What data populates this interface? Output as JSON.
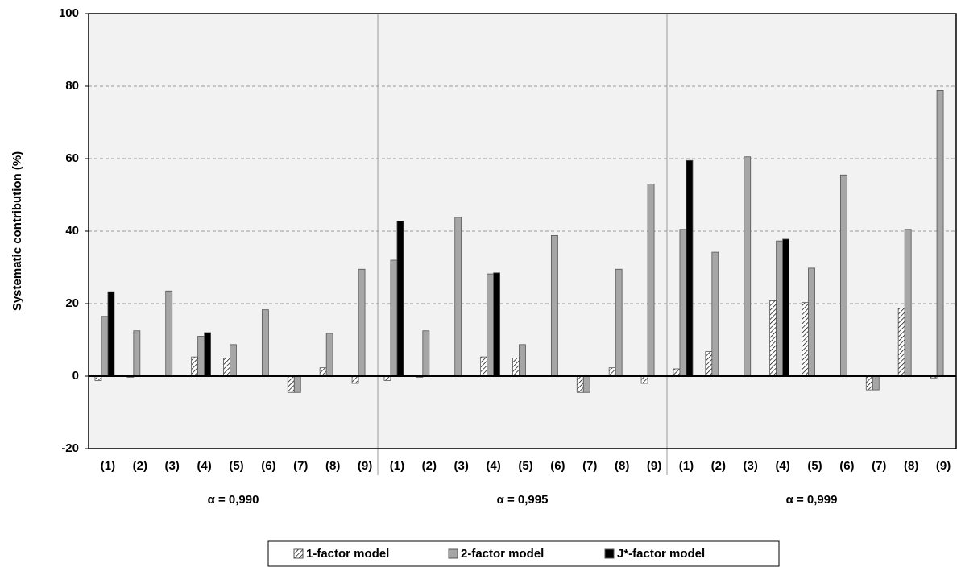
{
  "chart_data": {
    "type": "bar",
    "y_label": "Systematic contribution (%)",
    "categories": [
      "(1)",
      "(2)",
      "(3)",
      "(4)",
      "(5)",
      "(6)",
      "(7)",
      "(8)",
      "(9)",
      "(1)",
      "(2)",
      "(3)",
      "(4)",
      "(5)",
      "(6)",
      "(7)",
      "(8)",
      "(9)",
      "(1)",
      "(2)",
      "(3)",
      "(4)",
      "(5)",
      "(6)",
      "(7)",
      "(8)",
      "(9)"
    ],
    "groups": [
      "α = 0,990",
      "α = 0,995",
      "α = 0,999"
    ],
    "series": [
      {
        "name": "1-factor model",
        "color": "#ffffff",
        "pattern": "hatch",
        "values": [
          -1.2,
          -0.3,
          null,
          5.3,
          5,
          null,
          -4.5,
          2.3,
          -2,
          -1.2,
          -0.3,
          null,
          5.3,
          5,
          null,
          -4.5,
          2.3,
          -2,
          2,
          6.8,
          null,
          20.8,
          20.3,
          null,
          -3.8,
          18.8,
          -0.5
        ]
      },
      {
        "name": "2-factor model",
        "color": "#a6a6a6",
        "values": [
          16.5,
          12.5,
          23.5,
          11,
          8.7,
          18.3,
          -4.5,
          11.8,
          29.5,
          32,
          12.5,
          43.8,
          28.2,
          8.7,
          38.8,
          -4.5,
          29.5,
          53,
          40.5,
          34.2,
          60.5,
          37.3,
          29.8,
          55.5,
          -3.8,
          40.5,
          78.8
        ]
      },
      {
        "name": "J*-factor model",
        "color": "#000000",
        "values": [
          23.3,
          null,
          null,
          12,
          null,
          null,
          null,
          null,
          null,
          42.8,
          null,
          null,
          28.5,
          null,
          null,
          null,
          null,
          null,
          59.5,
          null,
          null,
          37.8,
          null,
          null,
          null,
          null,
          null
        ]
      }
    ],
    "ylim": [
      -20,
      100
    ],
    "yticks": [
      -20,
      0,
      20,
      40,
      60,
      80,
      100
    ],
    "grid": true
  }
}
